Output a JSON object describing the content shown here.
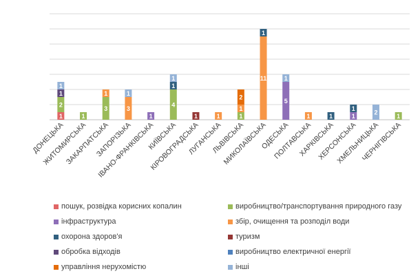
{
  "chart_data": {
    "type": "bar",
    "stacked": true,
    "categories": [
      "ДОНЕЦЬКА",
      "ЖИТОМИРСЬКА",
      "ЗАКАРПАТСЬКА",
      "ЗАПОРІЗЬКА",
      "ІВАНО-ФРАНКІВСЬКА",
      "КИЇВСЬКА",
      "КІРОВОГРАДСЬКА",
      "ЛУГАНСЬКА",
      "ЛЬВІВСЬКА",
      "МИКОЛАЇВСЬКА",
      "ОДЕСЬКА",
      "ПОЛТАВСЬКА",
      "ХАРКІВСЬКА",
      "ХЕРСОНСЬКА",
      "ХМЕЛЬНИЦЬКА",
      "ЧЕРНІГІВСЬКА"
    ],
    "ylim": [
      0,
      14
    ],
    "grid": true,
    "legend_position": "bottom",
    "series": [
      {
        "name": "пошук, розвідка корисних копалин",
        "color": "#e06666",
        "values": [
          1,
          0,
          0,
          0,
          0,
          0,
          0,
          0,
          0,
          0,
          0,
          0,
          0,
          0,
          0,
          0
        ]
      },
      {
        "name": "виробництво/транспортування природного газу",
        "color": "#9bbb59",
        "values": [
          2,
          1,
          3,
          0,
          0,
          4,
          0,
          0,
          1,
          0,
          0,
          0,
          0,
          0,
          0,
          1
        ]
      },
      {
        "name": "інфраструктура",
        "color": "#8e6fb8",
        "values": [
          0,
          0,
          0,
          0,
          1,
          0,
          0,
          0,
          0,
          0,
          5,
          0,
          0,
          1,
          0,
          0
        ]
      },
      {
        "name": "збір, очищення та розподіл води",
        "color": "#f79646",
        "values": [
          0,
          0,
          1,
          3,
          0,
          0,
          0,
          1,
          1,
          11,
          0,
          1,
          0,
          0,
          0,
          0
        ]
      },
      {
        "name": "охорона здоров'я",
        "color": "#31607f",
        "values": [
          0,
          0,
          0,
          0,
          0,
          1,
          0,
          0,
          0,
          1,
          0,
          0,
          1,
          1,
          0,
          0
        ]
      },
      {
        "name": "туризм",
        "color": "#953735",
        "values": [
          0,
          0,
          0,
          0,
          0,
          0,
          1,
          0,
          0,
          0,
          0,
          0,
          0,
          0,
          0,
          0
        ]
      },
      {
        "name": "обробка відходів",
        "color": "#604a7b",
        "values": [
          1,
          0,
          0,
          0,
          0,
          0,
          0,
          0,
          0,
          0,
          0,
          0,
          0,
          0,
          0,
          0
        ]
      },
      {
        "name": "виробництво електричної енергії",
        "color": "#4f81bd",
        "values": [
          0,
          0,
          0,
          0,
          0,
          0,
          0,
          0,
          0,
          0,
          0,
          0,
          0,
          0,
          0,
          0
        ]
      },
      {
        "name": "управління нерухомістю",
        "color": "#e46c0a",
        "values": [
          0,
          0,
          0,
          0,
          0,
          0,
          0,
          0,
          2,
          0,
          0,
          0,
          0,
          0,
          0,
          0
        ]
      },
      {
        "name": "інші",
        "color": "#95b3d7",
        "values": [
          1,
          0,
          0,
          1,
          0,
          1,
          0,
          0,
          0,
          0,
          1,
          0,
          0,
          0,
          2,
          0
        ]
      }
    ]
  },
  "legend_labels": [
    "пошук, розвідка корисних копалин",
    "виробництво/транспортування природного газу",
    "інфраструктура",
    "збір, очищення та розподіл води",
    "охорона здоров'я",
    "туризм",
    "обробка відходів",
    "виробництво електричної енергії",
    "управління нерухомістю",
    "інші"
  ]
}
